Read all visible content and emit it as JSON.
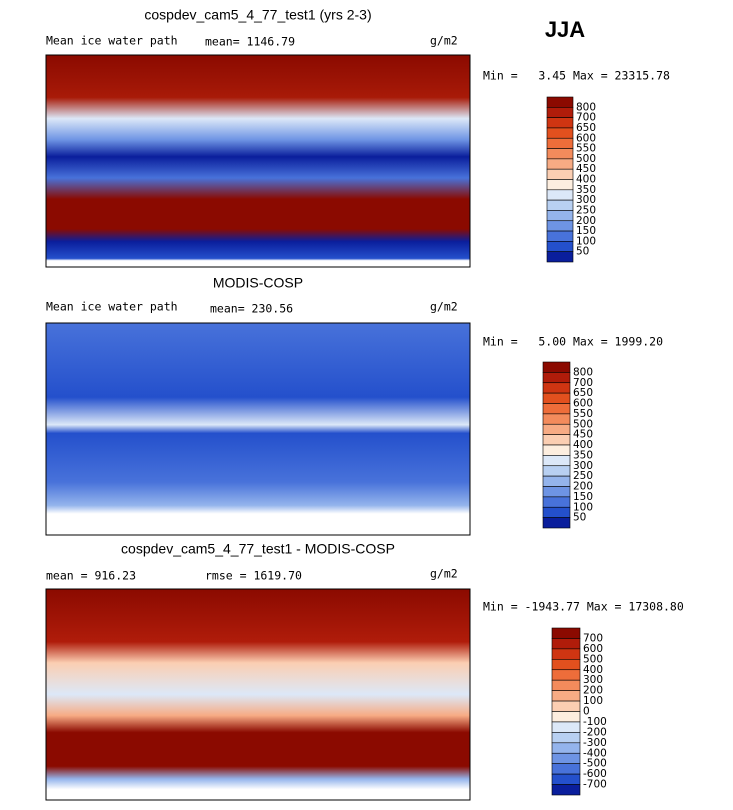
{
  "header": {
    "season": "JJA"
  },
  "panels": [
    {
      "title": "cospdev_cam5_4_77_test1 (yrs 2-3)",
      "left": "Mean ice water path",
      "middle": "mean= 1146.79",
      "units": "g/m2",
      "minmax": "Min =   3.45 Max = 23315.78",
      "colorbar": {
        "labels": [
          "800",
          "700",
          "650",
          "600",
          "550",
          "500",
          "450",
          "400",
          "350",
          "300",
          "250",
          "200",
          "150",
          "100",
          "50"
        ],
        "colors": [
          "#8b0a00",
          "#b01c0a",
          "#cf3512",
          "#e2501e",
          "#ee6d3a",
          "#f38b5c",
          "#f7ab84",
          "#fbceb2",
          "#fdeedf",
          "#dce8f8",
          "#b8d0f2",
          "#94b4ec",
          "#6e94e4",
          "#4872da",
          "#2450cc",
          "#0a1e9c"
        ]
      }
    },
    {
      "title": "MODIS-COSP",
      "left": "Mean ice water path",
      "middle": "mean= 230.56",
      "units": "g/m2",
      "minmax": "Min =   5.00 Max = 1999.20",
      "colorbar": {
        "labels": [
          "800",
          "700",
          "650",
          "600",
          "550",
          "500",
          "450",
          "400",
          "350",
          "300",
          "250",
          "200",
          "150",
          "100",
          "50"
        ],
        "colors": [
          "#8b0a00",
          "#b01c0a",
          "#cf3512",
          "#e2501e",
          "#ee6d3a",
          "#f38b5c",
          "#f7ab84",
          "#fbceb2",
          "#fdeedf",
          "#dce8f8",
          "#b8d0f2",
          "#94b4ec",
          "#6e94e4",
          "#4872da",
          "#2450cc",
          "#0a1e9c"
        ]
      }
    },
    {
      "title": "cospdev_cam5_4_77_test1 - MODIS-COSP",
      "left": "mean = 916.23",
      "middle": "rmse = 1619.70",
      "units": "g/m2",
      "minmax": "Min = -1943.77 Max = 17308.80",
      "colorbar": {
        "labels": [
          "700",
          "600",
          "500",
          "400",
          "300",
          "200",
          "100",
          "0",
          "-100",
          "-200",
          "-300",
          "-400",
          "-500",
          "-600",
          "-700"
        ],
        "colors": [
          "#8b0a00",
          "#b01c0a",
          "#cf3512",
          "#e2501e",
          "#ee6d3a",
          "#f38b5c",
          "#f7ab84",
          "#fbceb2",
          "#fdeedf",
          "#dce8f8",
          "#b8d0f2",
          "#94b4ec",
          "#6e94e4",
          "#4872da",
          "#2450cc",
          "#0a1e9c"
        ]
      }
    }
  ]
}
